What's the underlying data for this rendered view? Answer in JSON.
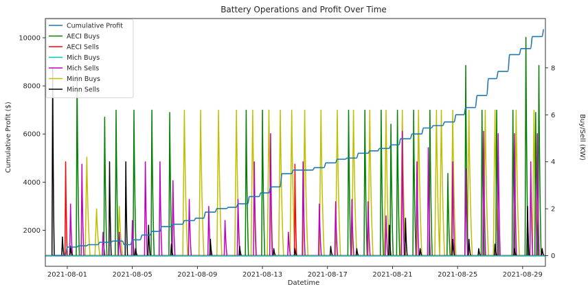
{
  "chart_data": {
    "type": "line",
    "title": "Battery Operations and Profit Over Time",
    "xlabel": "Datetime",
    "ylabel_left": "Cumulative Profit ($)",
    "ylabel_right": "Buy/Sell (KW)",
    "x_ticks": [
      "2021-08-01",
      "2021-08-05",
      "2021-08-09",
      "2021-08-13",
      "2021-08-17",
      "2021-08-21",
      "2021-08-25",
      "2021-08-29"
    ],
    "x_range_days": [
      -1.35,
      29.4
    ],
    "y_left_ticks": [
      2000,
      4000,
      6000,
      8000,
      10000
    ],
    "y_left_range": [
      500,
      10800
    ],
    "y_right_ticks": [
      0,
      2,
      4,
      6,
      8
    ],
    "y_right_range": [
      -0.45,
      10.1
    ],
    "legend_position": "upper-left",
    "colors": {
      "cumulative_profit": "#1f77b4",
      "aeci_buys": "#008000",
      "aeci_sells": "#ff0000",
      "mich_buys": "#00bfbf",
      "mich_sells": "#bf00bf",
      "minn_buys": "#bfbf00",
      "minn_sells": "#000000"
    },
    "legend": [
      "Cumulative Profit",
      "AECI Buys",
      "AECI Sells",
      "Mich Buys",
      "Mich Sells",
      "Minn Buys",
      "Minn Sells"
    ],
    "cumulative_profit_steps": [
      [
        -0.9,
        950
      ],
      [
        0.0,
        1300
      ],
      [
        0.7,
        1350
      ],
      [
        1.3,
        1400
      ],
      [
        2.0,
        1500
      ],
      [
        2.8,
        1550
      ],
      [
        3.5,
        1400
      ],
      [
        4.0,
        1600
      ],
      [
        4.6,
        1800
      ],
      [
        5.2,
        1950
      ],
      [
        5.8,
        2150
      ],
      [
        6.5,
        2250
      ],
      [
        7.2,
        2400
      ],
      [
        7.9,
        2500
      ],
      [
        8.5,
        2750
      ],
      [
        9.2,
        2900
      ],
      [
        9.9,
        2950
      ],
      [
        10.5,
        3100
      ],
      [
        11.2,
        3400
      ],
      [
        11.9,
        3550
      ],
      [
        12.5,
        3800
      ],
      [
        13.2,
        4350
      ],
      [
        13.9,
        4500
      ],
      [
        14.6,
        4500
      ],
      [
        15.2,
        4600
      ],
      [
        15.9,
        4800
      ],
      [
        16.6,
        4950
      ],
      [
        17.2,
        5000
      ],
      [
        17.9,
        5200
      ],
      [
        18.6,
        5300
      ],
      [
        19.2,
        5400
      ],
      [
        19.9,
        5550
      ],
      [
        20.5,
        5800
      ],
      [
        21.2,
        6000
      ],
      [
        21.9,
        6250
      ],
      [
        22.5,
        6350
      ],
      [
        23.2,
        6500
      ],
      [
        23.9,
        6800
      ],
      [
        24.5,
        7100
      ],
      [
        25.2,
        7600
      ],
      [
        25.9,
        8300
      ],
      [
        26.5,
        8600
      ],
      [
        27.2,
        9300
      ],
      [
        27.9,
        9550
      ],
      [
        28.6,
        10050
      ],
      [
        29.3,
        10350
      ]
    ],
    "aeci_buys_peaks": [
      [
        0.6,
        7.8
      ],
      [
        2.3,
        5.9
      ],
      [
        3.0,
        6.2
      ],
      [
        4.1,
        6.2
      ],
      [
        5.2,
        6.2
      ],
      [
        6.3,
        6.1
      ],
      [
        11.0,
        6.2
      ],
      [
        12.0,
        6.2
      ],
      [
        17.3,
        6.2
      ],
      [
        18.3,
        6.2
      ],
      [
        19.3,
        6.2
      ],
      [
        19.9,
        5.6
      ],
      [
        20.3,
        6.2
      ],
      [
        21.3,
        6.2
      ],
      [
        22.3,
        6.2
      ],
      [
        23.4,
        3.5
      ],
      [
        24.5,
        8.1
      ],
      [
        25.5,
        6.2
      ],
      [
        26.4,
        6.2
      ],
      [
        27.4,
        6.2
      ],
      [
        28.2,
        9.3
      ],
      [
        28.8,
        6.1
      ],
      [
        29.0,
        8.1
      ]
    ],
    "aeci_sells_peaks": [
      [
        -0.1,
        4.0
      ],
      [
        14.0,
        3.9
      ]
    ],
    "mich_sells_peaks": [
      [
        0.2,
        2.2
      ],
      [
        0.9,
        3.9
      ],
      [
        2.2,
        1.0
      ],
      [
        3.2,
        1.0
      ],
      [
        4.0,
        1.5
      ],
      [
        4.8,
        4.0
      ],
      [
        5.7,
        4.0
      ],
      [
        6.5,
        3.2
      ],
      [
        7.5,
        2.4
      ],
      [
        8.7,
        2.1
      ],
      [
        9.7,
        1.5
      ],
      [
        10.5,
        2.4
      ],
      [
        11.5,
        4.0
      ],
      [
        12.5,
        5.2
      ],
      [
        13.6,
        1.0
      ],
      [
        14.5,
        4.0
      ],
      [
        15.5,
        2.2
      ],
      [
        16.5,
        2.3
      ],
      [
        17.5,
        2.4
      ],
      [
        18.5,
        2.3
      ],
      [
        19.6,
        1.7
      ],
      [
        20.6,
        5.3
      ],
      [
        21.5,
        4.0
      ],
      [
        22.2,
        4.6
      ],
      [
        23.7,
        4.0
      ],
      [
        24.5,
        3.7
      ],
      [
        25.6,
        5.3
      ],
      [
        26.5,
        5.2
      ],
      [
        27.5,
        5.2
      ],
      [
        28.5,
        4.0
      ],
      [
        28.9,
        5.2
      ],
      [
        29.5,
        4.0
      ]
    ],
    "minn_buys_peaks": [
      [
        1.2,
        4.2
      ],
      [
        1.8,
        2.0
      ],
      [
        3.2,
        2.1
      ],
      [
        7.2,
        6.2
      ],
      [
        8.2,
        6.2
      ],
      [
        9.3,
        6.2
      ],
      [
        10.4,
        6.2
      ],
      [
        11.4,
        6.2
      ],
      [
        12.4,
        6.2
      ],
      [
        13.1,
        6.2
      ],
      [
        13.8,
        6.2
      ],
      [
        14.6,
        6.2
      ],
      [
        15.6,
        6.2
      ],
      [
        16.6,
        6.2
      ],
      [
        17.6,
        6.2
      ],
      [
        18.6,
        6.2
      ],
      [
        19.6,
        6.2
      ],
      [
        20.6,
        6.2
      ],
      [
        21.6,
        6.2
      ],
      [
        22.7,
        6.2
      ],
      [
        23.0,
        6.2
      ],
      [
        23.7,
        6.2
      ],
      [
        24.7,
        6.2
      ],
      [
        25.7,
        6.2
      ],
      [
        26.3,
        6.2
      ],
      [
        27.6,
        6.2
      ],
      [
        28.7,
        6.2
      ]
    ],
    "minn_sells_peaks": [
      [
        -0.9,
        8.0
      ],
      [
        -0.3,
        0.8
      ],
      [
        0.2,
        0.4
      ],
      [
        2.6,
        4.0
      ],
      [
        3.6,
        4.0
      ],
      [
        4.2,
        0.3
      ],
      [
        5.0,
        1.3
      ],
      [
        6.4,
        0.5
      ],
      [
        8.8,
        0.7
      ],
      [
        10.6,
        0.4
      ],
      [
        12.7,
        0.3
      ],
      [
        14.0,
        0.3
      ],
      [
        16.2,
        0.4
      ],
      [
        17.8,
        0.3
      ],
      [
        19.8,
        1.3
      ],
      [
        20.8,
        1.6
      ],
      [
        21.7,
        0.3
      ],
      [
        23.7,
        0.7
      ],
      [
        24.7,
        0.7
      ],
      [
        25.3,
        0.3
      ],
      [
        26.3,
        0.5
      ],
      [
        27.5,
        0.3
      ],
      [
        28.3,
        2.1
      ],
      [
        29.2,
        0.3
      ]
    ]
  }
}
